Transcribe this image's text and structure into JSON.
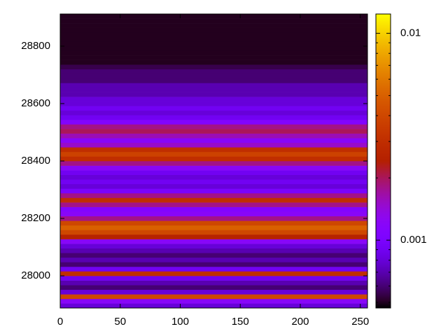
{
  "chart_data": {
    "type": "heatmap",
    "colormap": "gnuplot",
    "xlim": [
      0,
      256
    ],
    "xticks": [
      0,
      50,
      100,
      150,
      200,
      250
    ],
    "ylim": [
      27888,
      28912
    ],
    "yticks": [
      28000,
      28200,
      28400,
      28600,
      28800
    ],
    "zlim": [
      0.00047,
      0.0124
    ],
    "zlog": true,
    "zticks": [
      0.001,
      0.01
    ],
    "zminorticks": [
      0.0005,
      0.0006,
      0.0007,
      0.0008,
      0.0009,
      0.002,
      0.003,
      0.004,
      0.005,
      0.006,
      0.007,
      0.008,
      0.009
    ],
    "ybins": [
      27888,
      27904,
      27920,
      27936,
      27952,
      27968,
      27984,
      28000,
      28016,
      28032,
      28048,
      28064,
      28080,
      28096,
      28112,
      28128,
      28144,
      28160,
      28176,
      28192,
      28208,
      28224,
      28240,
      28256,
      28272,
      28288,
      28304,
      28320,
      28336,
      28352,
      28368,
      28384,
      28400,
      28416,
      28432,
      28448,
      28464,
      28480,
      28496,
      28512,
      28528,
      28544,
      28560,
      28576,
      28592,
      28608,
      28624,
      28640,
      28656,
      28672,
      28688,
      28704,
      28720,
      28736,
      28752,
      28768,
      28784,
      28800,
      28816,
      28832,
      28848,
      28864,
      28880,
      28896,
      28912
    ],
    "values": [
      0.0008,
      0.0012,
      0.004,
      0.0008,
      0.0006,
      0.0007,
      0.0009,
      0.003,
      0.0009,
      0.0006,
      0.0007,
      0.0006,
      0.0007,
      0.0008,
      0.0012,
      0.0025,
      0.004,
      0.005,
      0.004,
      0.0018,
      0.0012,
      0.0011,
      0.0018,
      0.003,
      0.0018,
      0.001,
      0.0008,
      0.0009,
      0.0008,
      0.0009,
      0.0012,
      0.0018,
      0.003,
      0.0038,
      0.003,
      0.0015,
      0.0012,
      0.0016,
      0.002,
      0.0018,
      0.0011,
      0.0009,
      0.0008,
      0.0009,
      0.0008,
      0.0008,
      0.0007,
      0.0007,
      0.0007,
      0.0006,
      0.0006,
      0.0006,
      0.00055,
      0.0005,
      0.0005,
      0.0005,
      0.0005,
      0.0005,
      0.0005,
      0.0005,
      0.0005,
      0.0005,
      0.0005,
      0.0005
    ]
  }
}
